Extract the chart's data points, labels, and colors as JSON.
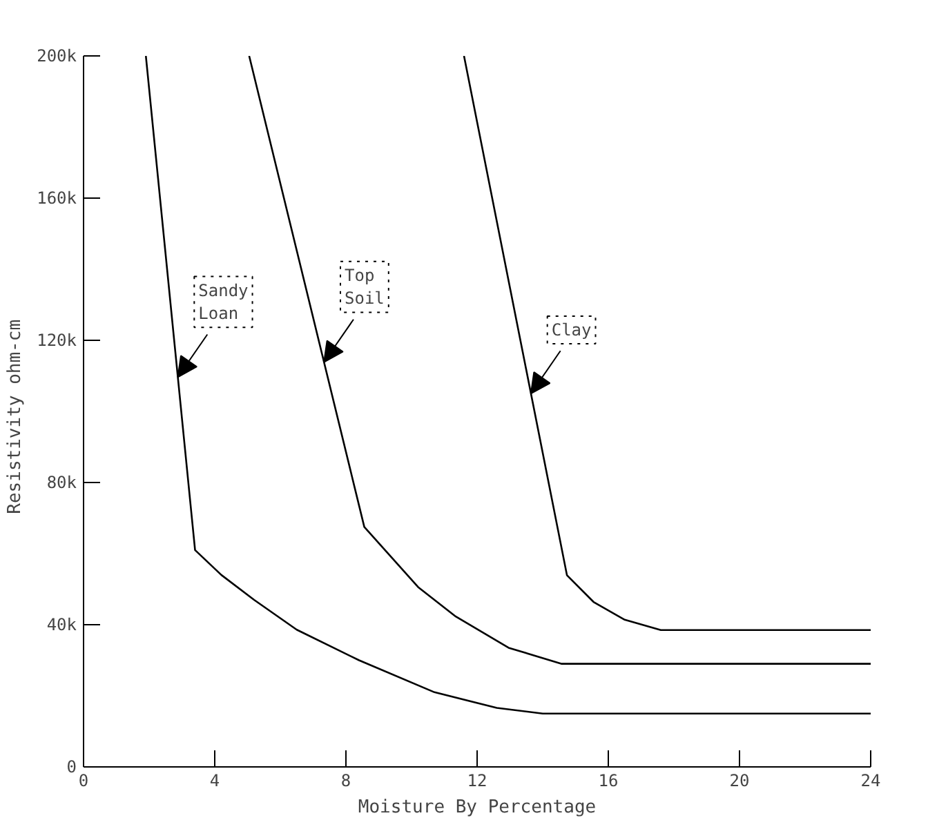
{
  "chart_data": {
    "type": "line",
    "xlabel": "Moisture By Percentage",
    "ylabel": "Resistivity  ohm-cm",
    "xlim": [
      0,
      24
    ],
    "ylim": [
      0,
      200000
    ],
    "xticks": [
      0,
      4,
      8,
      12,
      16,
      20,
      24
    ],
    "yticks": [
      0,
      {
        "value": 40000,
        "label": "40k"
      },
      {
        "value": 80000,
        "label": "80k"
      },
      {
        "value": 120000,
        "label": "120k"
      },
      {
        "value": 160000,
        "label": "160k"
      },
      {
        "value": 200000,
        "label": "200k"
      }
    ],
    "grid": false,
    "marker": "none",
    "line_style": "solid",
    "series": [
      {
        "name": "Sandy\nLoan",
        "color": "#000000",
        "x": [
          1.9,
          3.4,
          4.2,
          5.2,
          6.5,
          8.4,
          10.7,
          12.6,
          14.0,
          24
        ],
        "values": [
          200000,
          61000,
          54000,
          47000,
          38600,
          30000,
          21000,
          16600,
          15000,
          15000
        ]
      },
      {
        "name": "Top\nSoil",
        "color": "#000000",
        "x": [
          5.05,
          8.56,
          10.2,
          11.35,
          12.96,
          14.58,
          24
        ],
        "values": [
          200000,
          67500,
          50600,
          42300,
          33500,
          29000,
          29000
        ]
      },
      {
        "name": "Clay",
        "color": "#000000",
        "x": [
          11.6,
          14.74,
          15.55,
          16.5,
          17.6,
          24
        ],
        "values": [
          200000,
          53900,
          46400,
          41400,
          38500,
          38500
        ]
      }
    ]
  }
}
